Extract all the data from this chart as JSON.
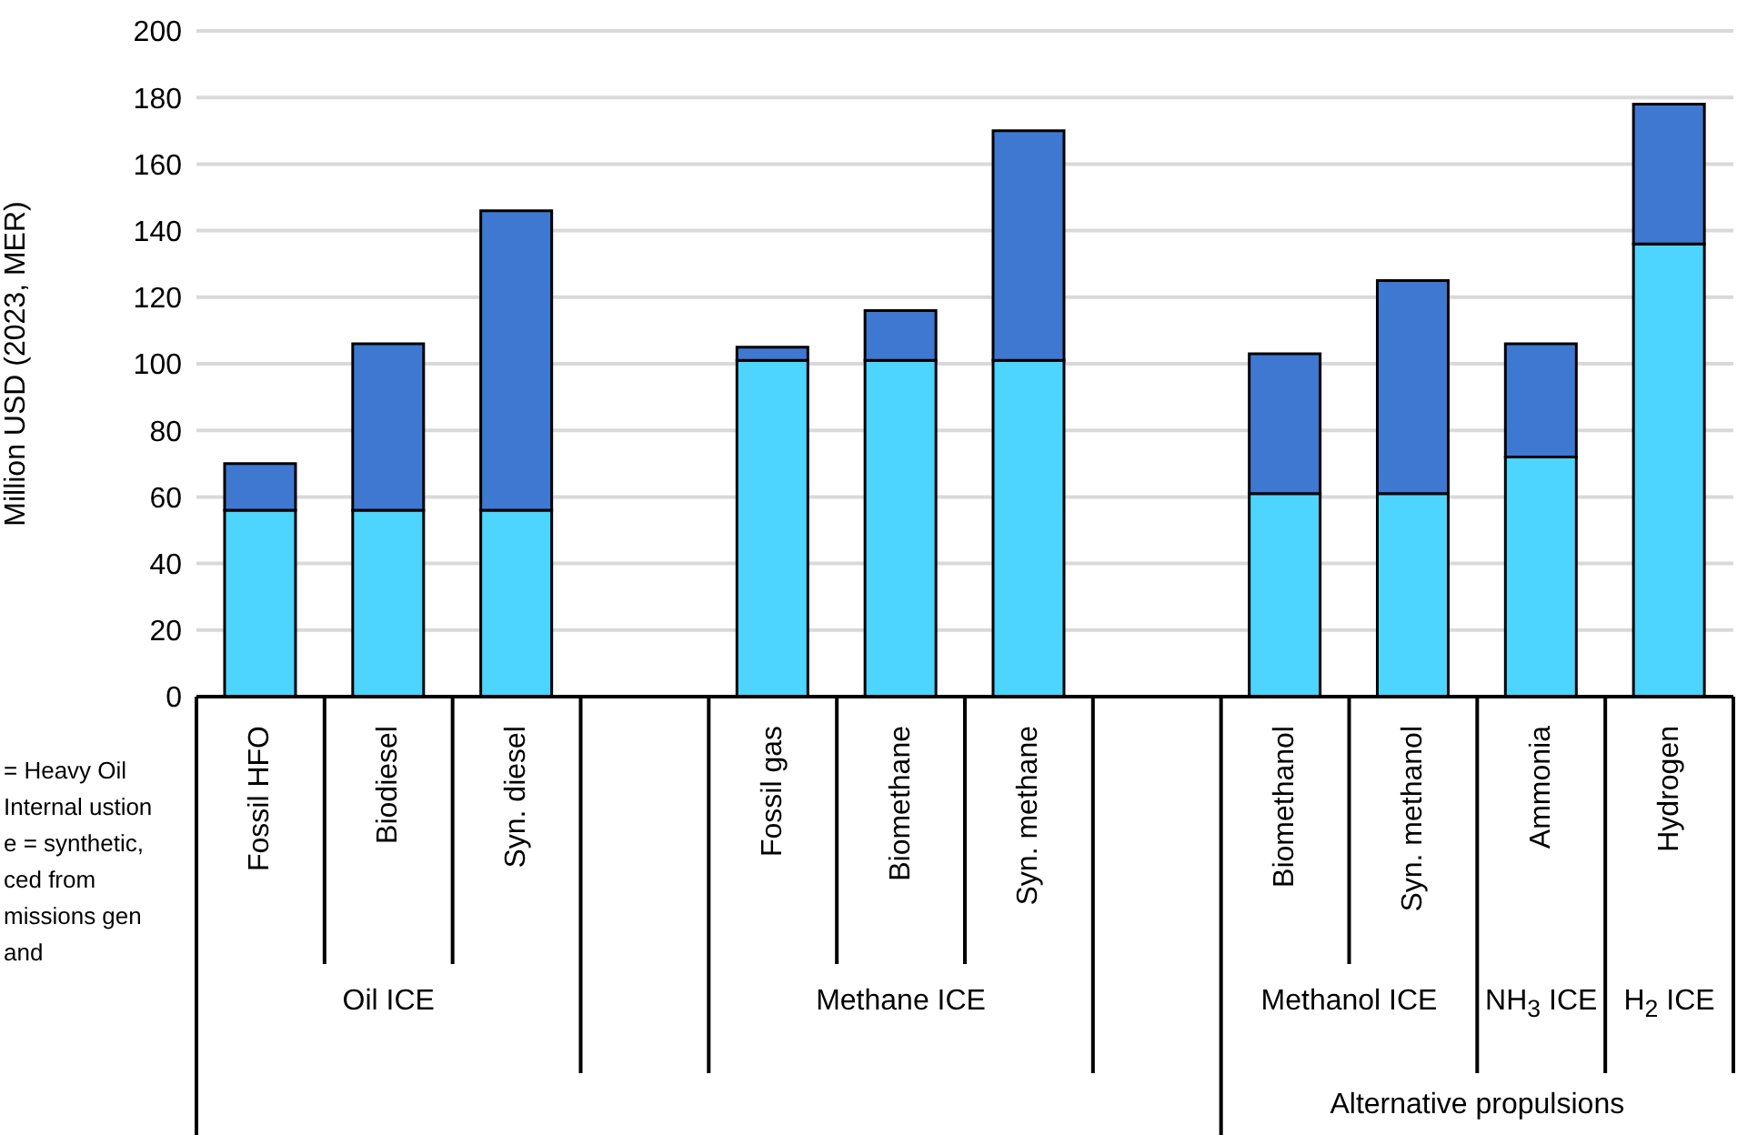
{
  "chart_data": {
    "type": "bar",
    "stacked": true,
    "ylabel": "Million USD (2023, MER)",
    "categories": [
      "Fossil HFO",
      "Biodiesel",
      "Syn. diesel",
      null,
      "Fossil gas",
      "Biomethane",
      "Syn. methane",
      null,
      "Biomethanol",
      "Syn. methanol",
      "Ammonia",
      "Hydrogen"
    ],
    "series": [
      {
        "color": "#4dd4ff",
        "values": [
          56,
          56,
          56,
          null,
          101,
          101,
          101,
          null,
          61,
          61,
          72,
          136
        ]
      },
      {
        "color": "#3f78d1",
        "values": [
          14,
          50,
          90,
          null,
          4,
          15,
          69,
          null,
          42,
          64,
          34,
          42
        ]
      }
    ],
    "ylim": [
      0,
      200
    ],
    "yticks": [
      0,
      20,
      40,
      60,
      80,
      100,
      120,
      140,
      160,
      180,
      200
    ],
    "grid": "y",
    "legend": false,
    "annotations": [
      "Oil ICE",
      "Methane ICE",
      "Methanol ICE",
      "NH$_{3}$ ICE",
      "H$_{2}$ ICE",
      "Alternative propulsions",
      "= Heavy Oil Internal ustion e = synthetic, ced from missions gen and"
    ]
  }
}
